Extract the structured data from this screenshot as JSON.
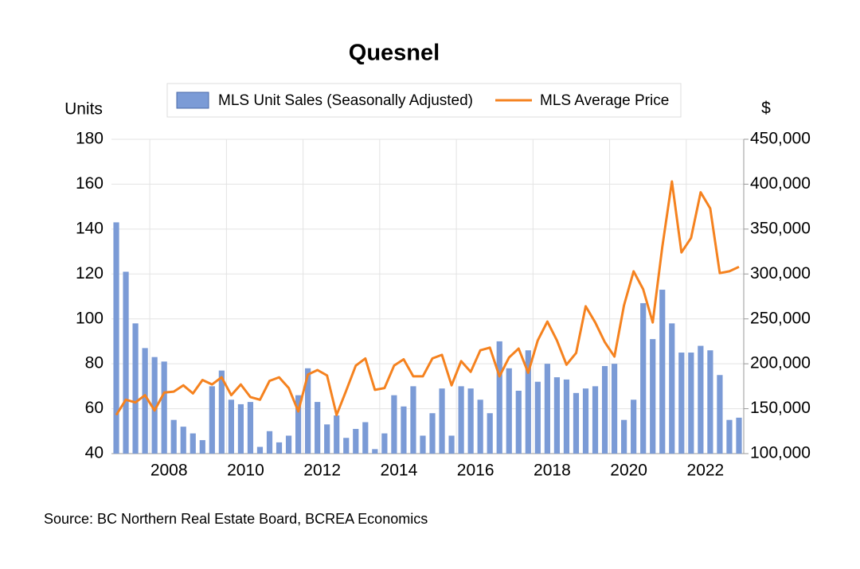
{
  "chart_data": {
    "type": "bar_line",
    "title": "Quesnel",
    "y_label": "Units",
    "y2_label": "$",
    "source": "Source:  BC Northern Real Estate Board, BCREA Economics",
    "categories": [
      null,
      null,
      null,
      null,
      "2008",
      null,
      null,
      null,
      null,
      null,
      null,
      null,
      "2010",
      null,
      null,
      null,
      null,
      null,
      null,
      null,
      "2012",
      null,
      null,
      null,
      null,
      null,
      null,
      null,
      "2014",
      null,
      null,
      null,
      null,
      null,
      null,
      null,
      "2016",
      null,
      null,
      null,
      null,
      null,
      null,
      null,
      "2018",
      null,
      null,
      null,
      null,
      null,
      null,
      null,
      "2020",
      null,
      null,
      null,
      null,
      null,
      null,
      null,
      "2022",
      null,
      null,
      null,
      null,
      null
    ],
    "series": [
      {
        "name": "MLS Unit Sales (Seasonally Adjusted)",
        "type": "bar",
        "color": "#7b9bd6",
        "values": [
          143,
          121,
          98,
          87,
          83,
          81,
          55,
          52,
          49,
          46,
          70,
          77,
          64,
          62,
          63,
          43,
          50,
          45,
          48,
          66,
          78,
          63,
          53,
          57,
          47,
          51,
          54,
          42,
          49,
          66,
          61,
          70,
          48,
          58,
          69,
          48,
          70,
          69,
          64,
          58,
          90,
          78,
          68,
          86,
          72,
          80,
          74,
          73,
          67,
          69,
          70,
          79,
          80,
          55,
          64,
          107,
          91,
          113,
          98,
          85,
          85,
          88,
          86,
          75,
          55,
          56
        ]
      },
      {
        "name": "MLS Average Price",
        "type": "line",
        "color": "#f5821f",
        "axis": "y2",
        "values": [
          143000,
          160000,
          157000,
          165000,
          148000,
          168000,
          169000,
          176000,
          167000,
          182000,
          177000,
          185000,
          165000,
          177000,
          163000,
          160000,
          181000,
          185000,
          173000,
          147000,
          188000,
          193000,
          187000,
          143000,
          170000,
          198000,
          206000,
          171000,
          173000,
          198000,
          205000,
          186000,
          186000,
          206000,
          210000,
          176000,
          203000,
          191000,
          215000,
          218000,
          186000,
          207000,
          217000,
          190000,
          226000,
          247000,
          226000,
          199000,
          212000,
          264000,
          246000,
          224000,
          208000,
          265000,
          303000,
          283000,
          246000,
          330000,
          403000,
          324000,
          340000,
          391000,
          373000,
          301000,
          303000,
          308000
        ]
      }
    ],
    "ylim": [
      40,
      180
    ],
    "yticks": [
      40,
      60,
      80,
      100,
      120,
      140,
      160,
      180
    ],
    "y2lim": [
      100000,
      450000
    ],
    "y2ticks": [
      {
        "value": 100000,
        "label": "100,000"
      },
      {
        "value": 150000,
        "label": "150,000"
      },
      {
        "value": 200000,
        "label": "200,000"
      },
      {
        "value": 250000,
        "label": "250,000"
      },
      {
        "value": 300000,
        "label": "300,000"
      },
      {
        "value": 350000,
        "label": "350,000"
      },
      {
        "value": 400000,
        "label": "400,000"
      },
      {
        "value": 450000,
        "label": "450,000"
      }
    ],
    "grid": true
  }
}
